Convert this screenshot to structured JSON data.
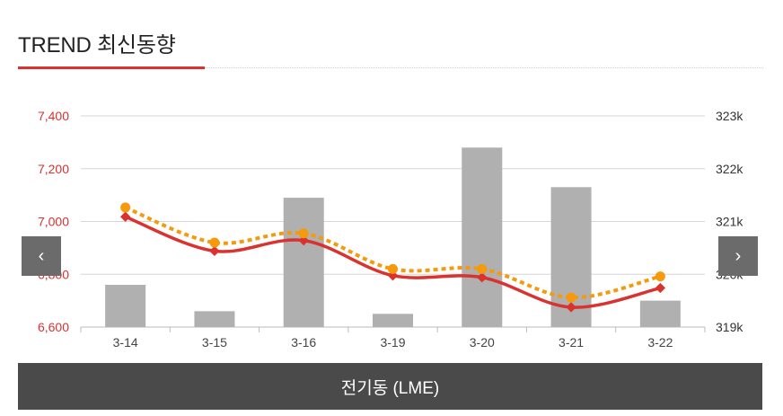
{
  "header": {
    "title": "TREND 최신동향"
  },
  "nav": {
    "prev_icon": "‹",
    "next_icon": "›"
  },
  "footer": {
    "label": "전기동 (LME)"
  },
  "colors": {
    "price_line": "#d9322f",
    "avg_line": "#f59a0c",
    "bars": "#b0b0b0",
    "left_axis_text": "#d9322f"
  },
  "chart_data": {
    "type": "bar",
    "categories": [
      "3-14",
      "3-15",
      "3-16",
      "3-19",
      "3-20",
      "3-21",
      "3-22"
    ],
    "left_axis": {
      "ylim": [
        6600,
        7400
      ],
      "ticks": [
        6600,
        6800,
        7000,
        7200,
        7400
      ],
      "tick_labels": [
        "6,600",
        "6,800",
        "7,000",
        "7,200",
        "7,400"
      ]
    },
    "right_axis": {
      "ylim": [
        319000,
        323000
      ],
      "ticks": [
        319000,
        320000,
        321000,
        322000,
        323000
      ],
      "tick_labels": [
        "319k",
        "320k",
        "321k",
        "322k",
        "323k"
      ]
    },
    "series": [
      {
        "type": "bar",
        "axis": "right",
        "values": [
          319800,
          319300,
          321450,
          319250,
          322400,
          321650,
          319500
        ]
      },
      {
        "type": "line",
        "axis": "left",
        "marker": "diamond",
        "values": [
          7018,
          6888,
          6928,
          6795,
          6788,
          6675,
          6748
        ]
      },
      {
        "type": "line",
        "axis": "left",
        "style": "dotted",
        "marker": "circle",
        "values": [
          7053,
          6920,
          6955,
          6820,
          6820,
          6712,
          6792
        ]
      }
    ],
    "grid": true
  }
}
